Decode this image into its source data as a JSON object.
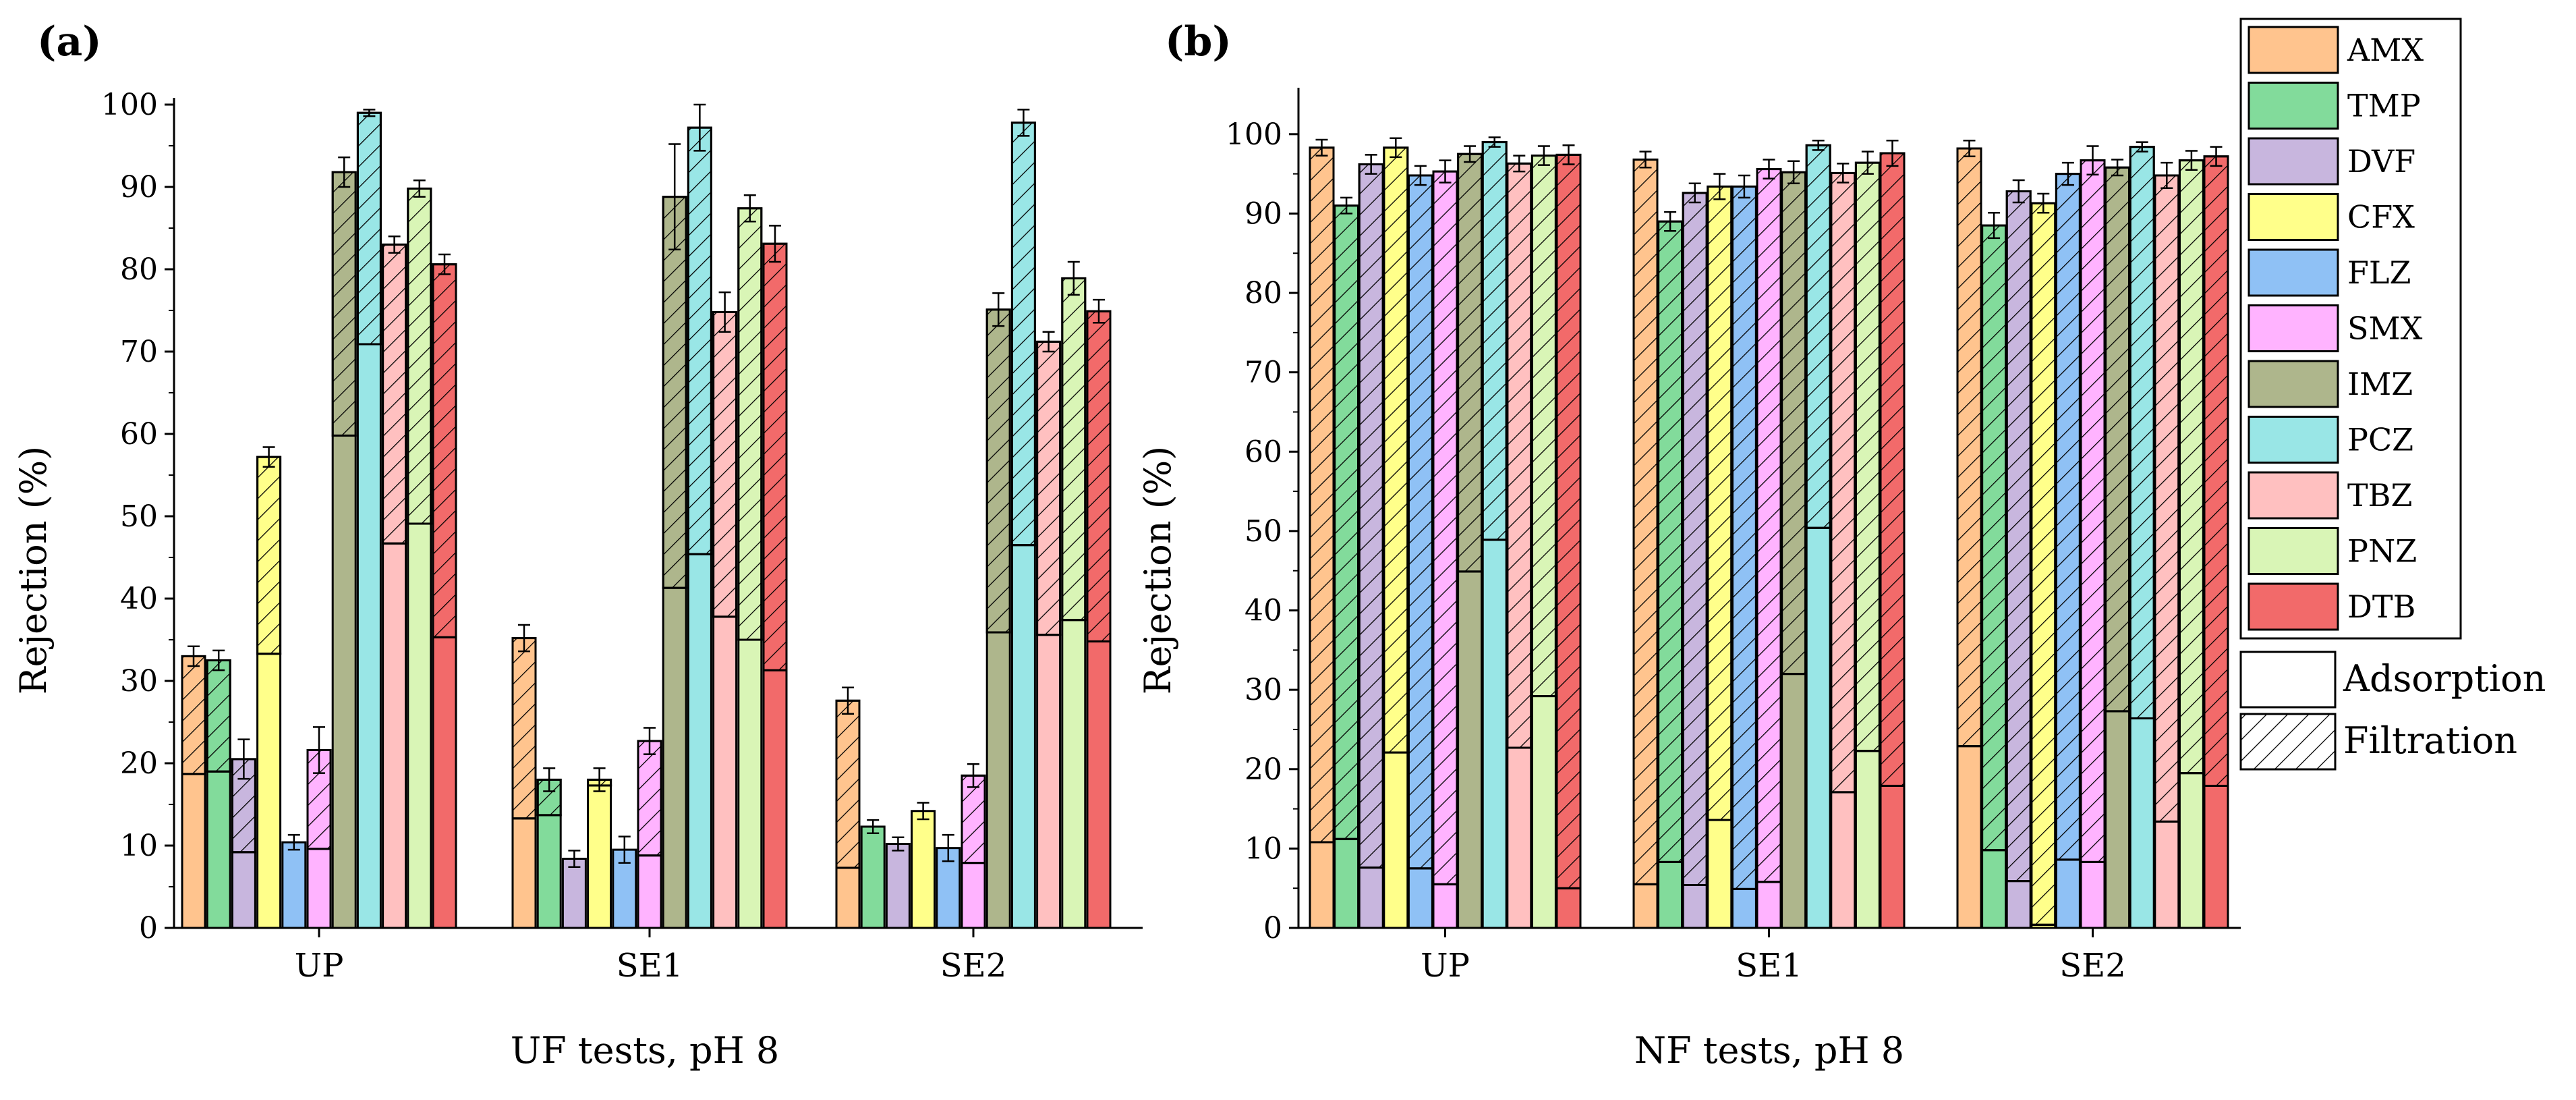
{
  "chart_data": [
    {
      "type": "bar",
      "panel_label": "(a)",
      "categories": [
        "UP",
        "SE1",
        "SE2"
      ],
      "ylabel": "Rejection (%)",
      "xlabel": "UF tests, pH 8",
      "ylim": [
        0,
        100
      ],
      "yticks": [
        "0",
        "10",
        "20",
        "30",
        "40",
        "50",
        "60",
        "70",
        "80",
        "90",
        "100"
      ],
      "series": [
        {
          "name": "AMX",
          "color": "#FFC48E",
          "adsorption": [
            18.7,
            13.3,
            7.3
          ],
          "total": [
            33.0,
            35.2,
            27.6
          ],
          "error": [
            1.2,
            1.6,
            1.6
          ]
        },
        {
          "name": "TMP",
          "color": "#82DB9B",
          "adsorption": [
            19.0,
            13.7,
            12.3
          ],
          "total": [
            32.5,
            18.0,
            12.3
          ],
          "error": [
            1.2,
            1.4,
            0.8
          ]
        },
        {
          "name": "DVF",
          "color": "#C8B6DE",
          "adsorption": [
            9.2,
            8.4,
            10.2
          ],
          "total": [
            20.5,
            8.4,
            10.2
          ],
          "error": [
            2.4,
            1.0,
            0.8
          ]
        },
        {
          "name": "CFX",
          "color": "#FFFF8A",
          "adsorption": [
            33.3,
            17.3,
            14.2
          ],
          "total": [
            57.2,
            18.0,
            14.2
          ],
          "error": [
            1.2,
            1.4,
            1.0
          ]
        },
        {
          "name": "FLZ",
          "color": "#8FC1F5",
          "adsorption": [
            10.4,
            9.5,
            9.7
          ],
          "total": [
            10.4,
            9.5,
            9.7
          ],
          "error": [
            0.9,
            1.6,
            1.6
          ]
        },
        {
          "name": "SMX",
          "color": "#FFB3FF",
          "adsorption": [
            9.6,
            8.8,
            7.9
          ],
          "total": [
            21.6,
            22.7,
            18.5
          ],
          "error": [
            2.8,
            1.6,
            1.4
          ]
        },
        {
          "name": "IMZ",
          "color": "#AEB68C",
          "adsorption": [
            59.8,
            41.3,
            35.9
          ],
          "total": [
            91.8,
            88.8,
            75.1
          ],
          "error": [
            1.8,
            6.4,
            2.0
          ]
        },
        {
          "name": "PCZ",
          "color": "#99E6E6",
          "adsorption": [
            70.9,
            45.4,
            46.5
          ],
          "total": [
            99.0,
            97.2,
            97.8
          ],
          "error": [
            0.4,
            2.8,
            1.6
          ]
        },
        {
          "name": "TBZ",
          "color": "#FFC0C0",
          "adsorption": [
            46.7,
            37.8,
            35.6
          ],
          "total": [
            83.0,
            74.8,
            71.2
          ],
          "error": [
            1.0,
            2.4,
            1.2
          ]
        },
        {
          "name": "PNZ",
          "color": "#D9F5B6",
          "adsorption": [
            49.1,
            35.0,
            37.4
          ],
          "total": [
            89.8,
            87.4,
            78.9
          ],
          "error": [
            1.0,
            1.6,
            2.0
          ]
        },
        {
          "name": "DTB",
          "color": "#F26A6A",
          "adsorption": [
            35.3,
            31.3,
            34.8
          ],
          "total": [
            80.6,
            83.1,
            74.9
          ],
          "error": [
            1.2,
            2.2,
            1.4
          ]
        }
      ]
    },
    {
      "type": "bar",
      "panel_label": "(b)",
      "categories": [
        "UP",
        "SE1",
        "SE2"
      ],
      "ylabel": "Rejection (%)",
      "xlabel": "NF tests, pH 8",
      "ylim": [
        0,
        105
      ],
      "yticks": [
        "0",
        "10",
        "20",
        "30",
        "40",
        "50",
        "60",
        "70",
        "80",
        "90",
        "100"
      ],
      "series": [
        {
          "name": "AMX",
          "color": "#FFC48E",
          "adsorption": [
            10.8,
            5.5,
            22.9
          ],
          "total": [
            98.3,
            96.8,
            98.2
          ],
          "error": [
            1.0,
            1.0,
            1.0
          ]
        },
        {
          "name": "TMP",
          "color": "#82DB9B",
          "adsorption": [
            11.2,
            8.3,
            9.8
          ],
          "total": [
            91.0,
            89.0,
            88.5
          ],
          "error": [
            1.0,
            1.2,
            1.6
          ]
        },
        {
          "name": "DVF",
          "color": "#C8B6DE",
          "adsorption": [
            7.6,
            5.4,
            5.9
          ],
          "total": [
            96.2,
            92.6,
            92.8
          ],
          "error": [
            1.2,
            1.2,
            1.4
          ]
        },
        {
          "name": "CFX",
          "color": "#FFFF8A",
          "adsorption": [
            22.1,
            13.6,
            0.4
          ],
          "total": [
            98.3,
            93.4,
            91.3
          ],
          "error": [
            1.2,
            1.6,
            1.2
          ]
        },
        {
          "name": "FLZ",
          "color": "#8FC1F5",
          "adsorption": [
            7.5,
            4.9,
            8.6
          ],
          "total": [
            94.8,
            93.4,
            95.0
          ],
          "error": [
            1.2,
            1.4,
            1.4
          ]
        },
        {
          "name": "SMX",
          "color": "#FFB3FF",
          "adsorption": [
            5.5,
            5.8,
            8.3
          ],
          "total": [
            95.3,
            95.6,
            96.7
          ],
          "error": [
            1.4,
            1.2,
            1.8
          ]
        },
        {
          "name": "IMZ",
          "color": "#AEB68C",
          "adsorption": [
            44.9,
            32.0,
            27.3
          ],
          "total": [
            97.5,
            95.2,
            95.8
          ],
          "error": [
            1.0,
            1.4,
            1.0
          ]
        },
        {
          "name": "PCZ",
          "color": "#99E6E6",
          "adsorption": [
            48.9,
            50.4,
            26.4
          ],
          "total": [
            99.0,
            98.6,
            98.4
          ],
          "error": [
            0.6,
            0.6,
            0.6
          ]
        },
        {
          "name": "TBZ",
          "color": "#FFC0C0",
          "adsorption": [
            22.7,
            17.1,
            13.4
          ],
          "total": [
            96.3,
            95.1,
            94.8
          ],
          "error": [
            1.0,
            1.2,
            1.6
          ]
        },
        {
          "name": "PNZ",
          "color": "#D9F5B6",
          "adsorption": [
            29.2,
            22.3,
            19.5
          ],
          "total": [
            97.3,
            96.4,
            96.7
          ],
          "error": [
            1.2,
            1.4,
            1.2
          ]
        },
        {
          "name": "DTB",
          "color": "#F26A6A",
          "adsorption": [
            5.0,
            17.9,
            17.9
          ],
          "total": [
            97.4,
            97.6,
            97.2
          ],
          "error": [
            1.2,
            1.6,
            1.2
          ]
        }
      ]
    }
  ],
  "legend": {
    "series_names": [
      "AMX",
      "TMP",
      "DVF",
      "CFX",
      "FLZ",
      "SMX",
      "IMZ",
      "PCZ",
      "TBZ",
      "PNZ",
      "DTB"
    ],
    "pattern_labels": [
      "Adsorption",
      "Filtration"
    ]
  }
}
